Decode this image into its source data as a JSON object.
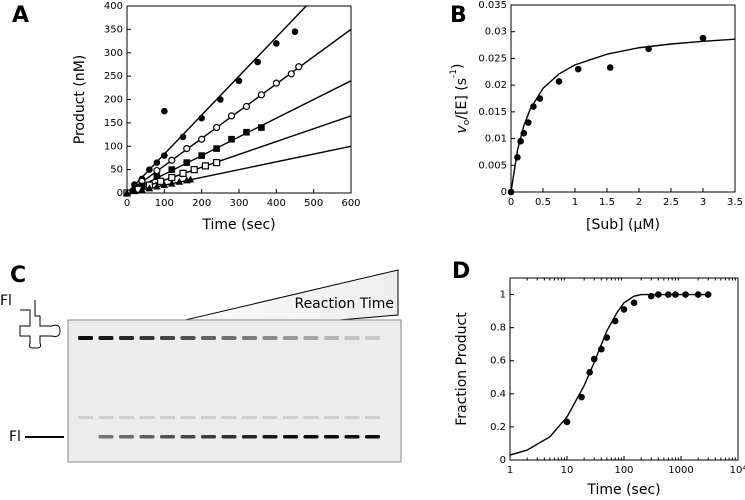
{
  "chart_data": [
    {
      "type": "scatter",
      "panel_label": "A",
      "xlabel": "Time  (sec)",
      "ylabel": [
        "Product  (nM)"
      ],
      "xlim": [
        0,
        600
      ],
      "ylim": [
        0,
        400
      ],
      "xticks": [
        0,
        100,
        200,
        300,
        400,
        500,
        600
      ],
      "yticks": [
        0,
        50,
        100,
        150,
        200,
        250,
        300,
        350,
        400
      ],
      "xscale": "linear",
      "series": [
        {
          "marker": "filled-circle",
          "color": "#000000",
          "x": [
            0,
            20,
            40,
            60,
            80,
            100,
            100,
            150,
            200,
            250,
            300,
            350,
            400,
            450
          ],
          "values": [
            0,
            18,
            30,
            50,
            65,
            80,
            175,
            120,
            160,
            200,
            240,
            280,
            320,
            345
          ]
        },
        {
          "marker": "open-circle",
          "color": "#000000",
          "x": [
            0,
            40,
            80,
            120,
            160,
            200,
            240,
            280,
            320,
            360,
            400,
            440,
            460
          ],
          "values": [
            0,
            25,
            48,
            70,
            95,
            115,
            140,
            165,
            185,
            210,
            235,
            255,
            270
          ]
        },
        {
          "marker": "filled-square",
          "color": "#000000",
          "x": [
            0,
            40,
            80,
            120,
            160,
            200,
            240,
            280,
            320,
            360
          ],
          "values": [
            0,
            15,
            35,
            50,
            65,
            80,
            95,
            115,
            130,
            140
          ]
        },
        {
          "marker": "open-square",
          "color": "#000000",
          "x": [
            0,
            30,
            60,
            90,
            120,
            150,
            180,
            210,
            240
          ],
          "values": [
            0,
            8,
            17,
            25,
            33,
            42,
            50,
            58,
            65
          ]
        },
        {
          "marker": "filled-triangle",
          "color": "#000000",
          "x": [
            0,
            20,
            40,
            60,
            80,
            100,
            120,
            140,
            160,
            170
          ],
          "values": [
            0,
            4,
            7,
            10,
            14,
            17,
            20,
            24,
            27,
            29
          ]
        }
      ],
      "fits": [
        {
          "x": [
            0,
            480
          ],
          "values": [
            0,
            400
          ]
        },
        {
          "x": [
            0,
            600
          ],
          "values": [
            0,
            350
          ]
        },
        {
          "x": [
            0,
            600
          ],
          "values": [
            0,
            240
          ]
        },
        {
          "x": [
            0,
            600
          ],
          "values": [
            0,
            165
          ]
        },
        {
          "x": [
            0,
            600
          ],
          "values": [
            0,
            100
          ]
        }
      ]
    },
    {
      "type": "scatter",
      "panel_label": "B",
      "xlabel": "[Sub]  (µM)",
      "ylabel": [
        "v",
        "o",
        "/[E]  (s",
        "-1",
        ")"
      ],
      "xlim": [
        0,
        3.5
      ],
      "ylim": [
        0,
        0.035
      ],
      "xticks": [
        0,
        0.5,
        1,
        1.5,
        2,
        2.5,
        3,
        3.5
      ],
      "yticks": [
        0,
        0.005,
        0.01,
        0.015,
        0.02,
        0.025,
        0.03,
        0.035
      ],
      "xscale": "linear",
      "series": [
        {
          "marker": "filled-circle",
          "color": "#000000",
          "x": [
            0,
            0.1,
            0.15,
            0.2,
            0.27,
            0.35,
            0.45,
            0.75,
            1.05,
            1.55,
            2.15,
            3
          ],
          "values": [
            0,
            0.0065,
            0.0095,
            0.011,
            0.013,
            0.016,
            0.0175,
            0.0207,
            0.023,
            0.0233,
            0.0268,
            0.0288
          ]
        }
      ],
      "fits": [
        {
          "x": [
            0,
            0.1,
            0.2,
            0.3,
            0.5,
            0.75,
            1,
            1.5,
            2,
            2.5,
            3,
            3.5
          ],
          "values": [
            0,
            0.00775,
            0.0124,
            0.0155,
            0.0194,
            0.0221,
            0.0238,
            0.0258,
            0.027,
            0.0277,
            0.0282,
            0.0286
          ]
        }
      ]
    },
    {
      "type": "scatter",
      "panel_label": "D",
      "xlabel": "Time  (sec)",
      "ylabel": [
        "Fraction Product"
      ],
      "xlim": [
        1,
        10000
      ],
      "ylim": [
        0,
        1.1
      ],
      "xticks": [
        1,
        10,
        100,
        1000,
        {
          "value": 10000,
          "label": "10⁴"
        }
      ],
      "yticks": [
        0,
        0.2,
        0.4,
        0.6,
        0.8,
        1
      ],
      "xscale": "log",
      "series": [
        {
          "marker": "filled-circle",
          "color": "#000000",
          "x": [
            10,
            18,
            25,
            30,
            40,
            50,
            70,
            100,
            150,
            300,
            400,
            600,
            800,
            1200,
            2000,
            3000
          ],
          "values": [
            0.23,
            0.38,
            0.53,
            0.61,
            0.67,
            0.74,
            0.84,
            0.91,
            0.95,
            0.99,
            1,
            1,
            1,
            1,
            1,
            1
          ]
        }
      ],
      "fits": [
        {
          "x": [
            1,
            2,
            5,
            10,
            20,
            30,
            50,
            75,
            100,
            150,
            200,
            300,
            500,
            1000,
            3000
          ],
          "values": [
            0.03,
            0.06,
            0.14,
            0.26,
            0.45,
            0.59,
            0.78,
            0.89,
            0.95,
            0.99,
            1,
            1,
            1,
            1,
            1
          ]
        }
      ]
    }
  ],
  "gel": {
    "panel_label": "C",
    "top_label": "Fl",
    "bottom_label": "Fl",
    "triangle_label": "Reaction Time"
  }
}
